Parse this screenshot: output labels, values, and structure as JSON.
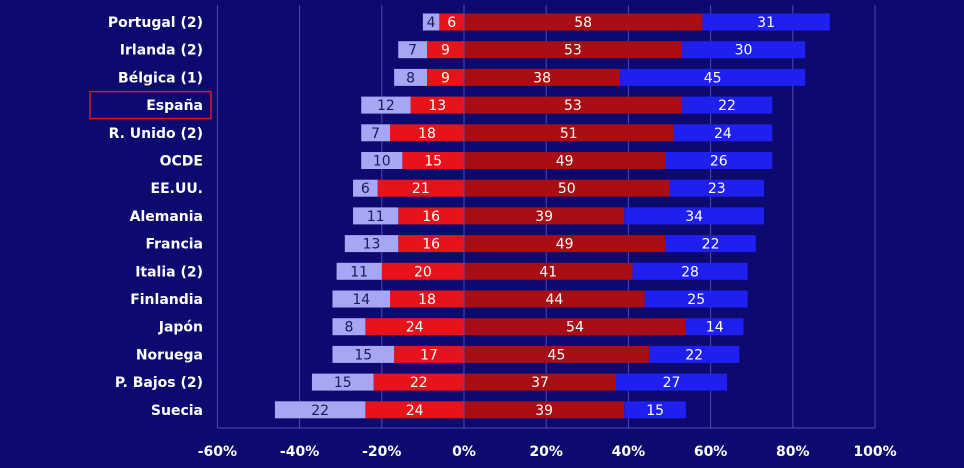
{
  "chart_data": {
    "type": "bar",
    "orientation": "horizontal-stacked-diverging",
    "title": "",
    "xlabel": "",
    "ylabel": "",
    "xlim": [
      -60,
      100
    ],
    "xticks": [
      -60,
      -40,
      -20,
      0,
      20,
      40,
      60,
      80,
      100
    ],
    "xtick_labels": [
      "-60%",
      "-40%",
      "-20%",
      "0%",
      "20%",
      "40%",
      "60%",
      "80%",
      "100%"
    ],
    "grid": true,
    "legend": "none",
    "highlight_category": "España",
    "categories": [
      "Portugal (2)",
      "Irlanda (2)",
      "Bélgica (1)",
      "España",
      "R. Unido (2)",
      "OCDE",
      "EE.UU.",
      "Alemania",
      "Francia",
      "Italia (2)",
      "Finlandia",
      "Japón",
      "Noruega",
      "P. Bajos (2)",
      "Suecia"
    ],
    "series": [
      {
        "side": "negative",
        "color": "#a6a6f5",
        "label_color": "#1b1b55",
        "values": [
          4,
          7,
          8,
          12,
          7,
          10,
          6,
          11,
          13,
          11,
          14,
          8,
          15,
          15,
          22
        ]
      },
      {
        "side": "negative",
        "color": "#e8121a",
        "label_color": "#ffffff",
        "values": [
          6,
          9,
          9,
          13,
          18,
          15,
          21,
          16,
          16,
          20,
          18,
          24,
          17,
          22,
          24
        ]
      },
      {
        "side": "positive",
        "color": "#a80e13",
        "label_color": "#ffffff",
        "values": [
          58,
          53,
          38,
          53,
          51,
          49,
          50,
          39,
          49,
          41,
          44,
          54,
          45,
          37,
          39
        ]
      },
      {
        "side": "positive",
        "color": "#1f1ff0",
        "label_color": "#ffffff",
        "values": [
          31,
          30,
          45,
          22,
          24,
          26,
          23,
          34,
          22,
          28,
          25,
          14,
          22,
          27,
          15
        ]
      }
    ]
  },
  "colors": {
    "background": "#0c0a6e",
    "grid": "#4a4ab8",
    "highlight_border": "#e01818"
  }
}
